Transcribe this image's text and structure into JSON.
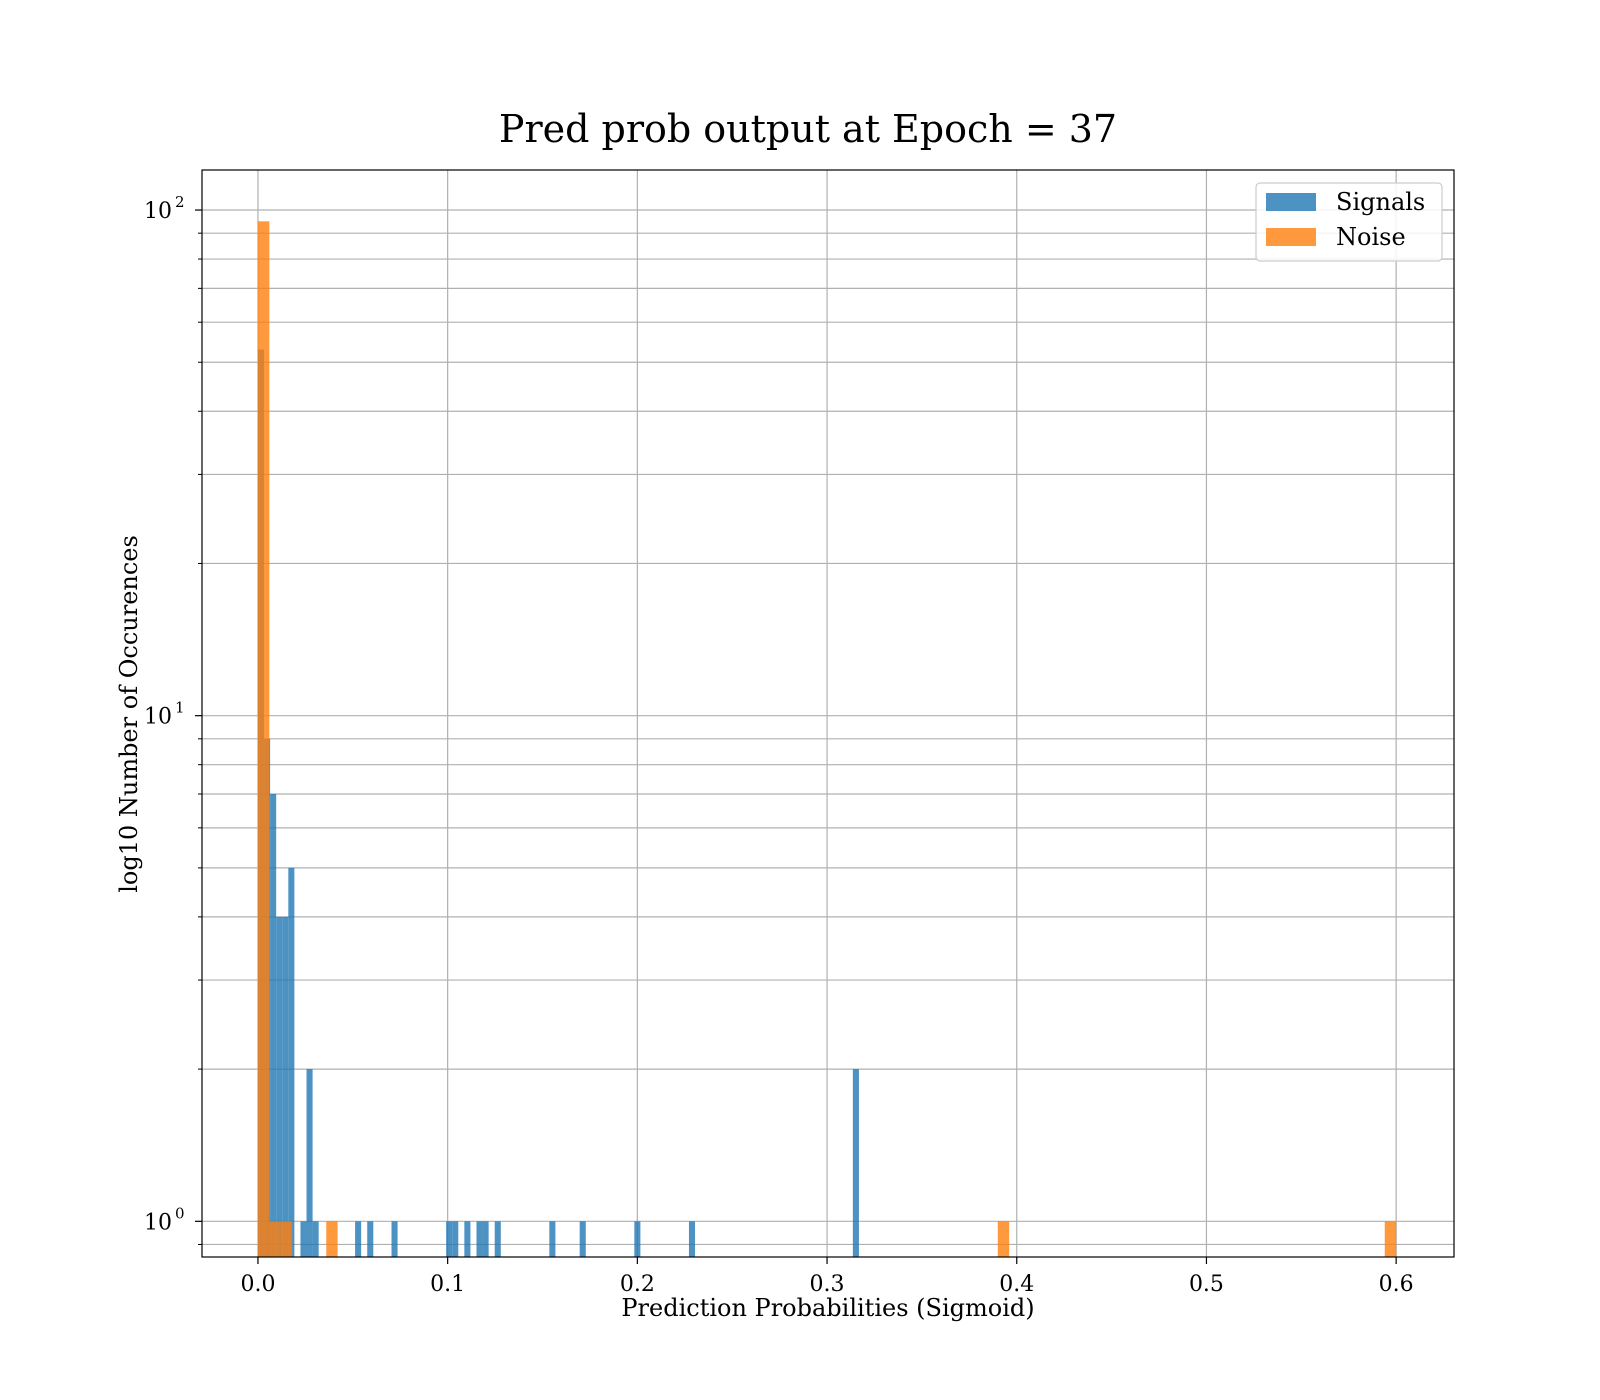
{
  "chart_data": {
    "type": "bar",
    "title": "Pred prob output at Epoch = 37",
    "xlabel": "Prediction Probabilities (Sigmoid)",
    "ylabel": "log10 Number of Occurences",
    "xlim": [
      -0.0295,
      0.6305
    ],
    "ylim": [
      0.85,
      120
    ],
    "yscale": "log",
    "grid": true,
    "legend": "top-right",
    "x_ticks": [
      {
        "value": 0.0,
        "label": "0.0"
      },
      {
        "value": 0.1,
        "label": "0.1"
      },
      {
        "value": 0.2,
        "label": "0.2"
      },
      {
        "value": 0.3,
        "label": "0.3"
      },
      {
        "value": 0.4,
        "label": "0.4"
      },
      {
        "value": 0.5,
        "label": "0.5"
      },
      {
        "value": 0.6,
        "label": "0.6"
      }
    ],
    "y_ticks": [
      {
        "value": 1,
        "base": "10",
        "exp": "0"
      },
      {
        "value": 10,
        "base": "10",
        "exp": "1"
      },
      {
        "value": 100,
        "base": "10",
        "exp": "2"
      }
    ],
    "series": [
      {
        "name": "Signals",
        "color": "#1f77b4",
        "bins": [
          {
            "x0": 0.0,
            "x1": 0.0032,
            "count": 53
          },
          {
            "x0": 0.0032,
            "x1": 0.0064,
            "count": 9
          },
          {
            "x0": 0.0064,
            "x1": 0.0096,
            "count": 7
          },
          {
            "x0": 0.0096,
            "x1": 0.0128,
            "count": 4
          },
          {
            "x0": 0.0128,
            "x1": 0.016,
            "count": 4
          },
          {
            "x0": 0.016,
            "x1": 0.0192,
            "count": 5
          },
          {
            "x0": 0.0224,
            "x1": 0.0256,
            "count": 1
          },
          {
            "x0": 0.0256,
            "x1": 0.0288,
            "count": 2
          },
          {
            "x0": 0.0288,
            "x1": 0.032,
            "count": 1
          },
          {
            "x0": 0.0512,
            "x1": 0.0544,
            "count": 1
          },
          {
            "x0": 0.0576,
            "x1": 0.0608,
            "count": 1
          },
          {
            "x0": 0.0704,
            "x1": 0.0736,
            "count": 1
          },
          {
            "x0": 0.0992,
            "x1": 0.1024,
            "count": 1
          },
          {
            "x0": 0.1024,
            "x1": 0.1056,
            "count": 1
          },
          {
            "x0": 0.1088,
            "x1": 0.112,
            "count": 1
          },
          {
            "x0": 0.1152,
            "x1": 0.1184,
            "count": 1
          },
          {
            "x0": 0.1184,
            "x1": 0.1216,
            "count": 1
          },
          {
            "x0": 0.1248,
            "x1": 0.128,
            "count": 1
          },
          {
            "x0": 0.1536,
            "x1": 0.1568,
            "count": 1
          },
          {
            "x0": 0.1696,
            "x1": 0.1728,
            "count": 1
          },
          {
            "x0": 0.1984,
            "x1": 0.2016,
            "count": 1
          },
          {
            "x0": 0.2272,
            "x1": 0.2304,
            "count": 1
          },
          {
            "x0": 0.3136,
            "x1": 0.3168,
            "count": 2
          }
        ]
      },
      {
        "name": "Noise",
        "color": "#ff7f0e",
        "bins": [
          {
            "x0": 0.0,
            "x1": 0.006,
            "count": 95
          },
          {
            "x0": 0.006,
            "x1": 0.012,
            "count": 1
          },
          {
            "x0": 0.012,
            "x1": 0.018,
            "count": 1
          },
          {
            "x0": 0.036,
            "x1": 0.042,
            "count": 1
          },
          {
            "x0": 0.39,
            "x1": 0.396,
            "count": 1
          },
          {
            "x0": 0.594,
            "x1": 0.6,
            "count": 1
          }
        ]
      }
    ]
  }
}
